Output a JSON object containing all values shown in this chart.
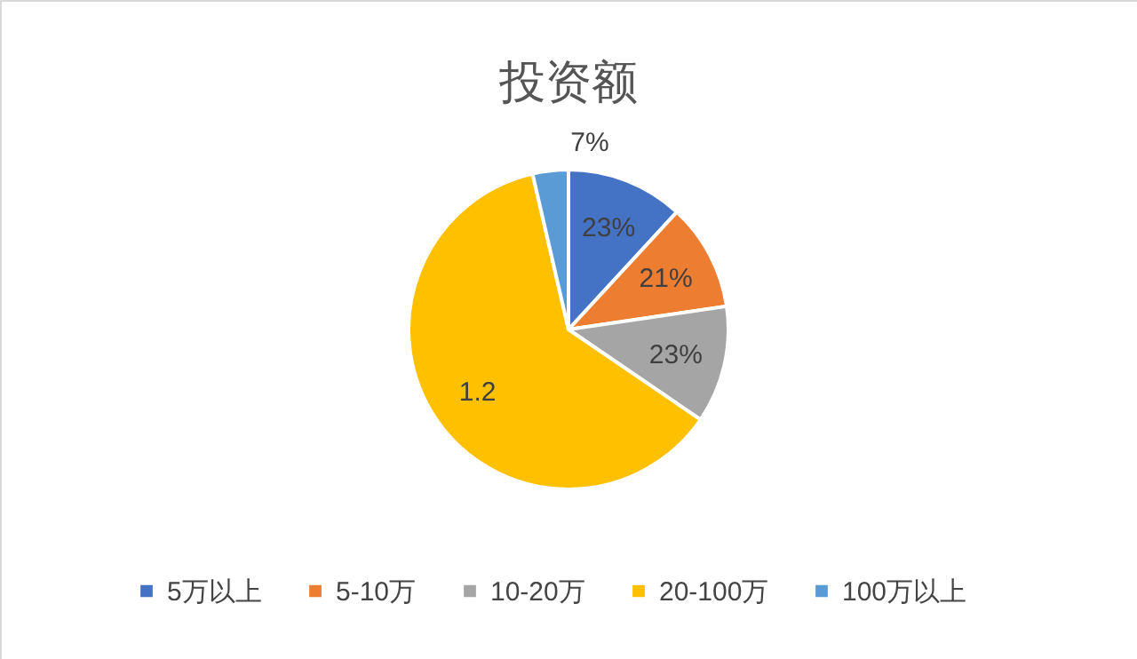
{
  "chart_data": {
    "type": "pie",
    "title": "投资额",
    "categories": [
      "5万以上",
      "5-10万",
      "10-20万",
      "20-100万",
      "100万以上"
    ],
    "values": [
      0.23,
      0.21,
      0.23,
      1.2,
      0.07
    ],
    "value_labels": [
      "23%",
      "21%",
      "23%",
      "1.2",
      "7%"
    ],
    "colors": [
      "#4472c4",
      "#ed7d31",
      "#a5a5a5",
      "#ffc000",
      "#5b9bd5"
    ],
    "legend": "bottom"
  }
}
